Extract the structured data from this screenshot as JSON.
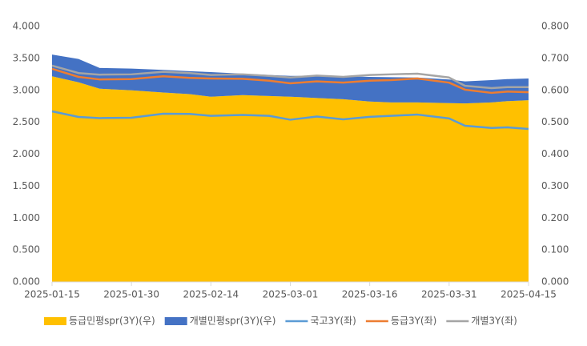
{
  "chart_data": {
    "type": "combo",
    "x": [
      "2025-01-15",
      "2025-01-20",
      "2025-01-24",
      "2025-01-30",
      "2025-02-05",
      "2025-02-10",
      "2025-02-14",
      "2025-02-20",
      "2025-02-25",
      "2025-03-01",
      "2025-03-06",
      "2025-03-11",
      "2025-03-16",
      "2025-03-20",
      "2025-03-25",
      "2025-03-31",
      "2025-04-03",
      "2025-04-08",
      "2025-04-11",
      "2025-04-15"
    ],
    "xticks": [
      "2025-01-15",
      "2025-01-30",
      "2025-02-14",
      "2025-03-01",
      "2025-03-16",
      "2025-03-31",
      "2025-04-15"
    ],
    "ylim": [
      0,
      4
    ],
    "yticks": [
      {
        "value": 0,
        "label": "0.000"
      },
      {
        "value": 0.5,
        "label": "0.500"
      },
      {
        "value": 1,
        "label": "1.000"
      },
      {
        "value": 1.5,
        "label": "1.500"
      },
      {
        "value": 2,
        "label": "2.000"
      },
      {
        "value": 2.5,
        "label": "2.500"
      },
      {
        "value": 3,
        "label": "3.000"
      },
      {
        "value": 3.5,
        "label": "3.500"
      },
      {
        "value": 4,
        "label": "4.000"
      }
    ],
    "y2lim": [
      0,
      0.8
    ],
    "y2ticks": [
      {
        "value": 0,
        "label": "0.000"
      },
      {
        "value": 0.1,
        "label": "0.100"
      },
      {
        "value": 0.2,
        "label": "0.200"
      },
      {
        "value": 0.3,
        "label": "0.300"
      },
      {
        "value": 0.4,
        "label": "0.400"
      },
      {
        "value": 0.5,
        "label": "0.500"
      },
      {
        "value": 0.6,
        "label": "0.600"
      },
      {
        "value": 0.7,
        "label": "0.700"
      },
      {
        "value": 0.8,
        "label": "0.800"
      }
    ],
    "legend": "bottom",
    "series": [
      {
        "name": "등급민평spr(3Y)(우)",
        "type": "stacked-area",
        "axis": "y2",
        "color": "#ffc000",
        "values": [
          0.644,
          0.625,
          0.605,
          0.6,
          0.593,
          0.588,
          0.58,
          0.585,
          0.582,
          0.58,
          0.576,
          0.572,
          0.565,
          0.562,
          0.562,
          0.56,
          0.559,
          0.562,
          0.566,
          0.569
        ]
      },
      {
        "name": "개별민평spr(3Y)(우)",
        "type": "stacked-area",
        "axis": "y2",
        "color": "#4472c4",
        "values": [
          0.068,
          0.073,
          0.065,
          0.068,
          0.071,
          0.072,
          0.077,
          0.067,
          0.066,
          0.065,
          0.069,
          0.072,
          0.077,
          0.079,
          0.078,
          0.074,
          0.069,
          0.07,
          0.069,
          0.068
        ]
      },
      {
        "name": "국고3Y(좌)",
        "type": "line",
        "color": "#5b9bd5",
        "values": [
          2.671,
          2.583,
          2.565,
          2.57,
          2.633,
          2.63,
          2.6,
          2.615,
          2.6,
          2.54,
          2.59,
          2.545,
          2.585,
          2.6,
          2.62,
          2.56,
          2.445,
          2.41,
          2.42,
          2.395
        ]
      },
      {
        "name": "등급3Y(좌)",
        "type": "line",
        "color": "#ed7d31",
        "values": [
          3.336,
          3.21,
          3.17,
          3.175,
          3.22,
          3.195,
          3.185,
          3.18,
          3.15,
          3.11,
          3.14,
          3.12,
          3.15,
          3.16,
          3.185,
          3.12,
          3.01,
          2.96,
          2.98,
          2.97
        ]
      },
      {
        "name": "개별3Y(좌)",
        "type": "line",
        "color": "#a5a5a5",
        "values": [
          3.386,
          3.27,
          3.245,
          3.25,
          3.29,
          3.27,
          3.24,
          3.25,
          3.225,
          3.2,
          3.23,
          3.21,
          3.24,
          3.25,
          3.26,
          3.2,
          3.07,
          3.035,
          3.05,
          3.05
        ]
      }
    ]
  }
}
